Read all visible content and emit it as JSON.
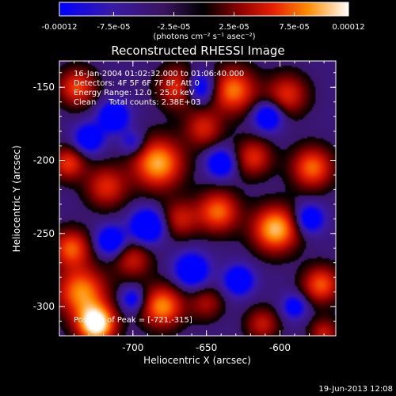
{
  "colorbar": {
    "ticks": [
      "-0.00012",
      "-7.5e-05",
      "-2.5e-05",
      "2.5e-05",
      "7.5e-05",
      "0.00012"
    ],
    "tick_values": [
      -0.00012,
      -7.5e-05,
      -2.5e-05,
      2.5e-05,
      7.5e-05,
      0.00012
    ],
    "range": [
      -0.00012,
      0.00012
    ],
    "units_label": "(photons cm⁻² s⁻¹ asec⁻²)",
    "stops": [
      {
        "f": 0.0,
        "color": "#0000ff"
      },
      {
        "f": 0.18,
        "color": "#3a1aa8"
      },
      {
        "f": 0.36,
        "color": "#3a1460"
      },
      {
        "f": 0.5,
        "color": "#000000"
      },
      {
        "f": 0.62,
        "color": "#8a0000"
      },
      {
        "f": 0.74,
        "color": "#e82000"
      },
      {
        "f": 0.86,
        "color": "#ff8c00"
      },
      {
        "f": 1.0,
        "color": "#ffffff"
      }
    ]
  },
  "chart_data": {
    "type": "heatmap",
    "title": "Reconstructed RHESSI Image",
    "xlabel": "Heliocentric X (arcsec)",
    "ylabel": "Heliocentric Y (arcsec)",
    "xlim": [
      -750,
      -562
    ],
    "ylim": [
      -320,
      -132
    ],
    "x_ticks": [
      -700,
      -650,
      -600
    ],
    "y_ticks": [
      -150,
      -200,
      -250,
      -300
    ],
    "annotations": [
      "16-Jan-2004 01:02:32.000 to 01:06:40.000",
      "Detectors: 4F 5F 6F 7F 8F, Att 0",
      "Energy Range: 12.0 - 25.0 keV",
      "Clean     Total counts: 2.38E+03"
    ],
    "peak_label": "Position of Peak = [-721,-315]",
    "peak": {
      "x": -721,
      "y": -315
    },
    "blobs": [
      {
        "x": -725,
        "y": -312,
        "s": 9,
        "a": 1.4
      },
      {
        "x": -735,
        "y": -290,
        "s": 12,
        "a": 0.95
      },
      {
        "x": -742,
        "y": -260,
        "s": 9,
        "a": 0.8
      },
      {
        "x": -744,
        "y": -202,
        "s": 8,
        "a": 0.7
      },
      {
        "x": -738,
        "y": -150,
        "s": 9,
        "a": 0.75
      },
      {
        "x": -718,
        "y": -218,
        "s": 10,
        "a": 0.65
      },
      {
        "x": -700,
        "y": -268,
        "s": 9,
        "a": 0.55
      },
      {
        "x": -680,
        "y": -300,
        "s": 10,
        "a": 0.95
      },
      {
        "x": -683,
        "y": -202,
        "s": 12,
        "a": 1.05
      },
      {
        "x": -668,
        "y": -150,
        "s": 10,
        "a": 0.8
      },
      {
        "x": -652,
        "y": -178,
        "s": 9,
        "a": 0.6
      },
      {
        "x": -668,
        "y": -240,
        "s": 9,
        "a": 0.55
      },
      {
        "x": -642,
        "y": -235,
        "s": 10,
        "a": 0.85
      },
      {
        "x": -632,
        "y": -152,
        "s": 11,
        "a": 0.9
      },
      {
        "x": -618,
        "y": -198,
        "s": 9,
        "a": 0.65
      },
      {
        "x": -603,
        "y": -247,
        "s": 11,
        "a": 1.1
      },
      {
        "x": -595,
        "y": -155,
        "s": 10,
        "a": 0.65
      },
      {
        "x": -578,
        "y": -205,
        "s": 10,
        "a": 0.85
      },
      {
        "x": -572,
        "y": -285,
        "s": 9,
        "a": 0.8
      },
      {
        "x": -612,
        "y": -312,
        "s": 8,
        "a": 0.55
      },
      {
        "x": -650,
        "y": -298,
        "s": 8,
        "a": 0.45
      },
      {
        "x": -570,
        "y": -318,
        "s": 7,
        "a": 0.55
      },
      {
        "x": -713,
        "y": -170,
        "s": 7,
        "a": -0.8
      },
      {
        "x": -730,
        "y": -185,
        "s": 7,
        "a": -0.7
      },
      {
        "x": -690,
        "y": -245,
        "s": 8,
        "a": -0.9
      },
      {
        "x": -715,
        "y": -255,
        "s": 7,
        "a": -0.75
      },
      {
        "x": -660,
        "y": -275,
        "s": 8,
        "a": -0.8
      },
      {
        "x": -628,
        "y": -282,
        "s": 7,
        "a": -0.75
      },
      {
        "x": -640,
        "y": -202,
        "s": 7,
        "a": -0.7
      },
      {
        "x": -608,
        "y": -170,
        "s": 7,
        "a": -0.75
      },
      {
        "x": -655,
        "y": -150,
        "s": 8,
        "a": -0.85
      },
      {
        "x": -580,
        "y": -240,
        "s": 7,
        "a": -0.7
      },
      {
        "x": -700,
        "y": -295,
        "s": 6,
        "a": -0.55
      },
      {
        "x": -590,
        "y": -300,
        "s": 6,
        "a": -0.55
      },
      {
        "x": -700,
        "y": -188,
        "s": 6,
        "a": -0.45
      }
    ]
  },
  "footer": {
    "timestamp": "19-Jun-2013 12:08"
  }
}
